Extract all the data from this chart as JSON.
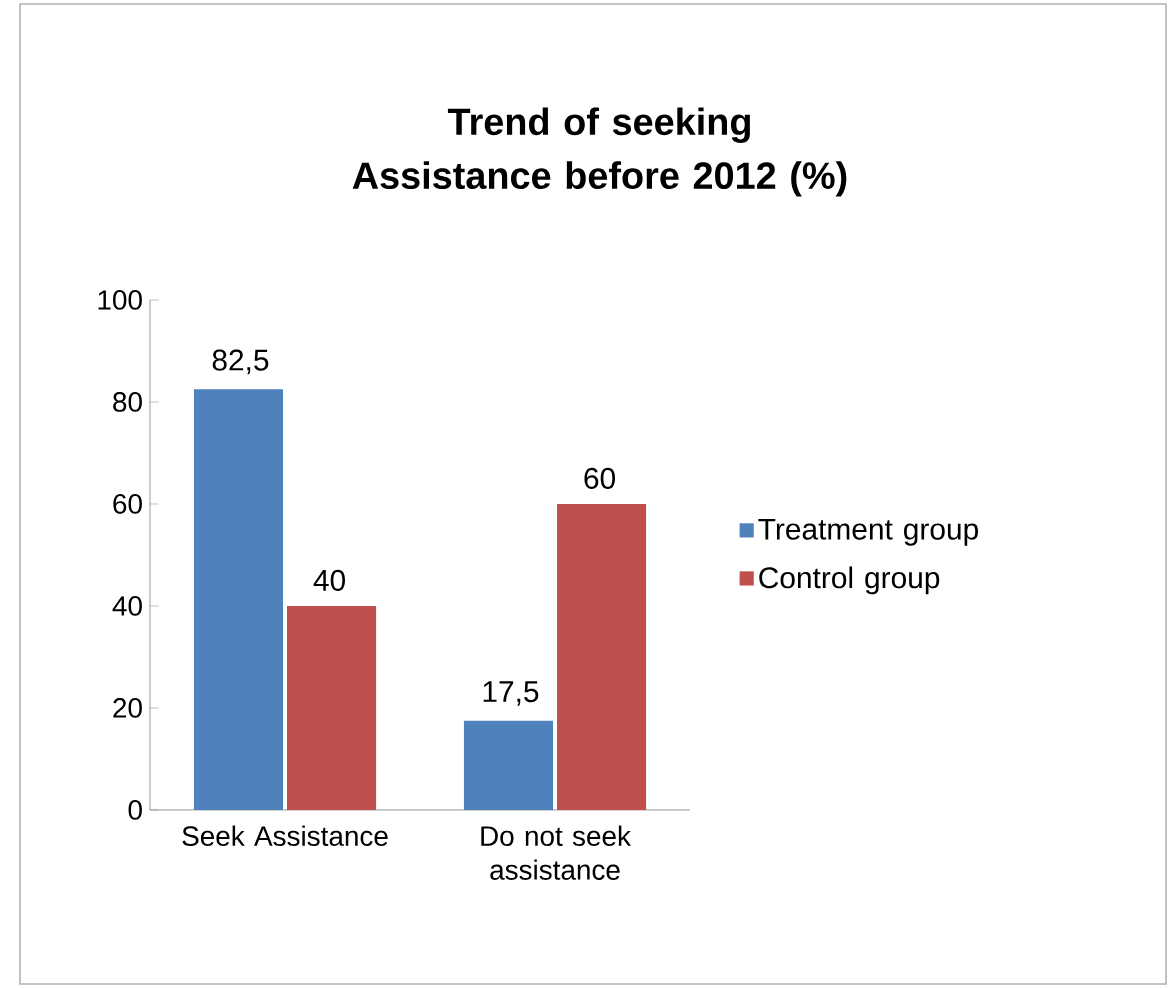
{
  "chart_data": {
    "type": "bar",
    "title": "Trend of seeking Assistance before 2012 (%)",
    "categories": [
      "Seek Assistance",
      "Do not seek assistance"
    ],
    "series": [
      {
        "name": "Treatment group",
        "color": "#4f81bd",
        "values": [
          82.5,
          17.5
        ],
        "value_labels": [
          "82,5",
          "17,5"
        ]
      },
      {
        "name": "Control group",
        "color": "#c0504d",
        "values": [
          40,
          60
        ],
        "value_labels": [
          "40",
          "60"
        ]
      }
    ],
    "ylim": [
      0,
      100
    ],
    "yticks": [
      0,
      20,
      40,
      60,
      80,
      100
    ],
    "grid": false,
    "legend": "right"
  }
}
